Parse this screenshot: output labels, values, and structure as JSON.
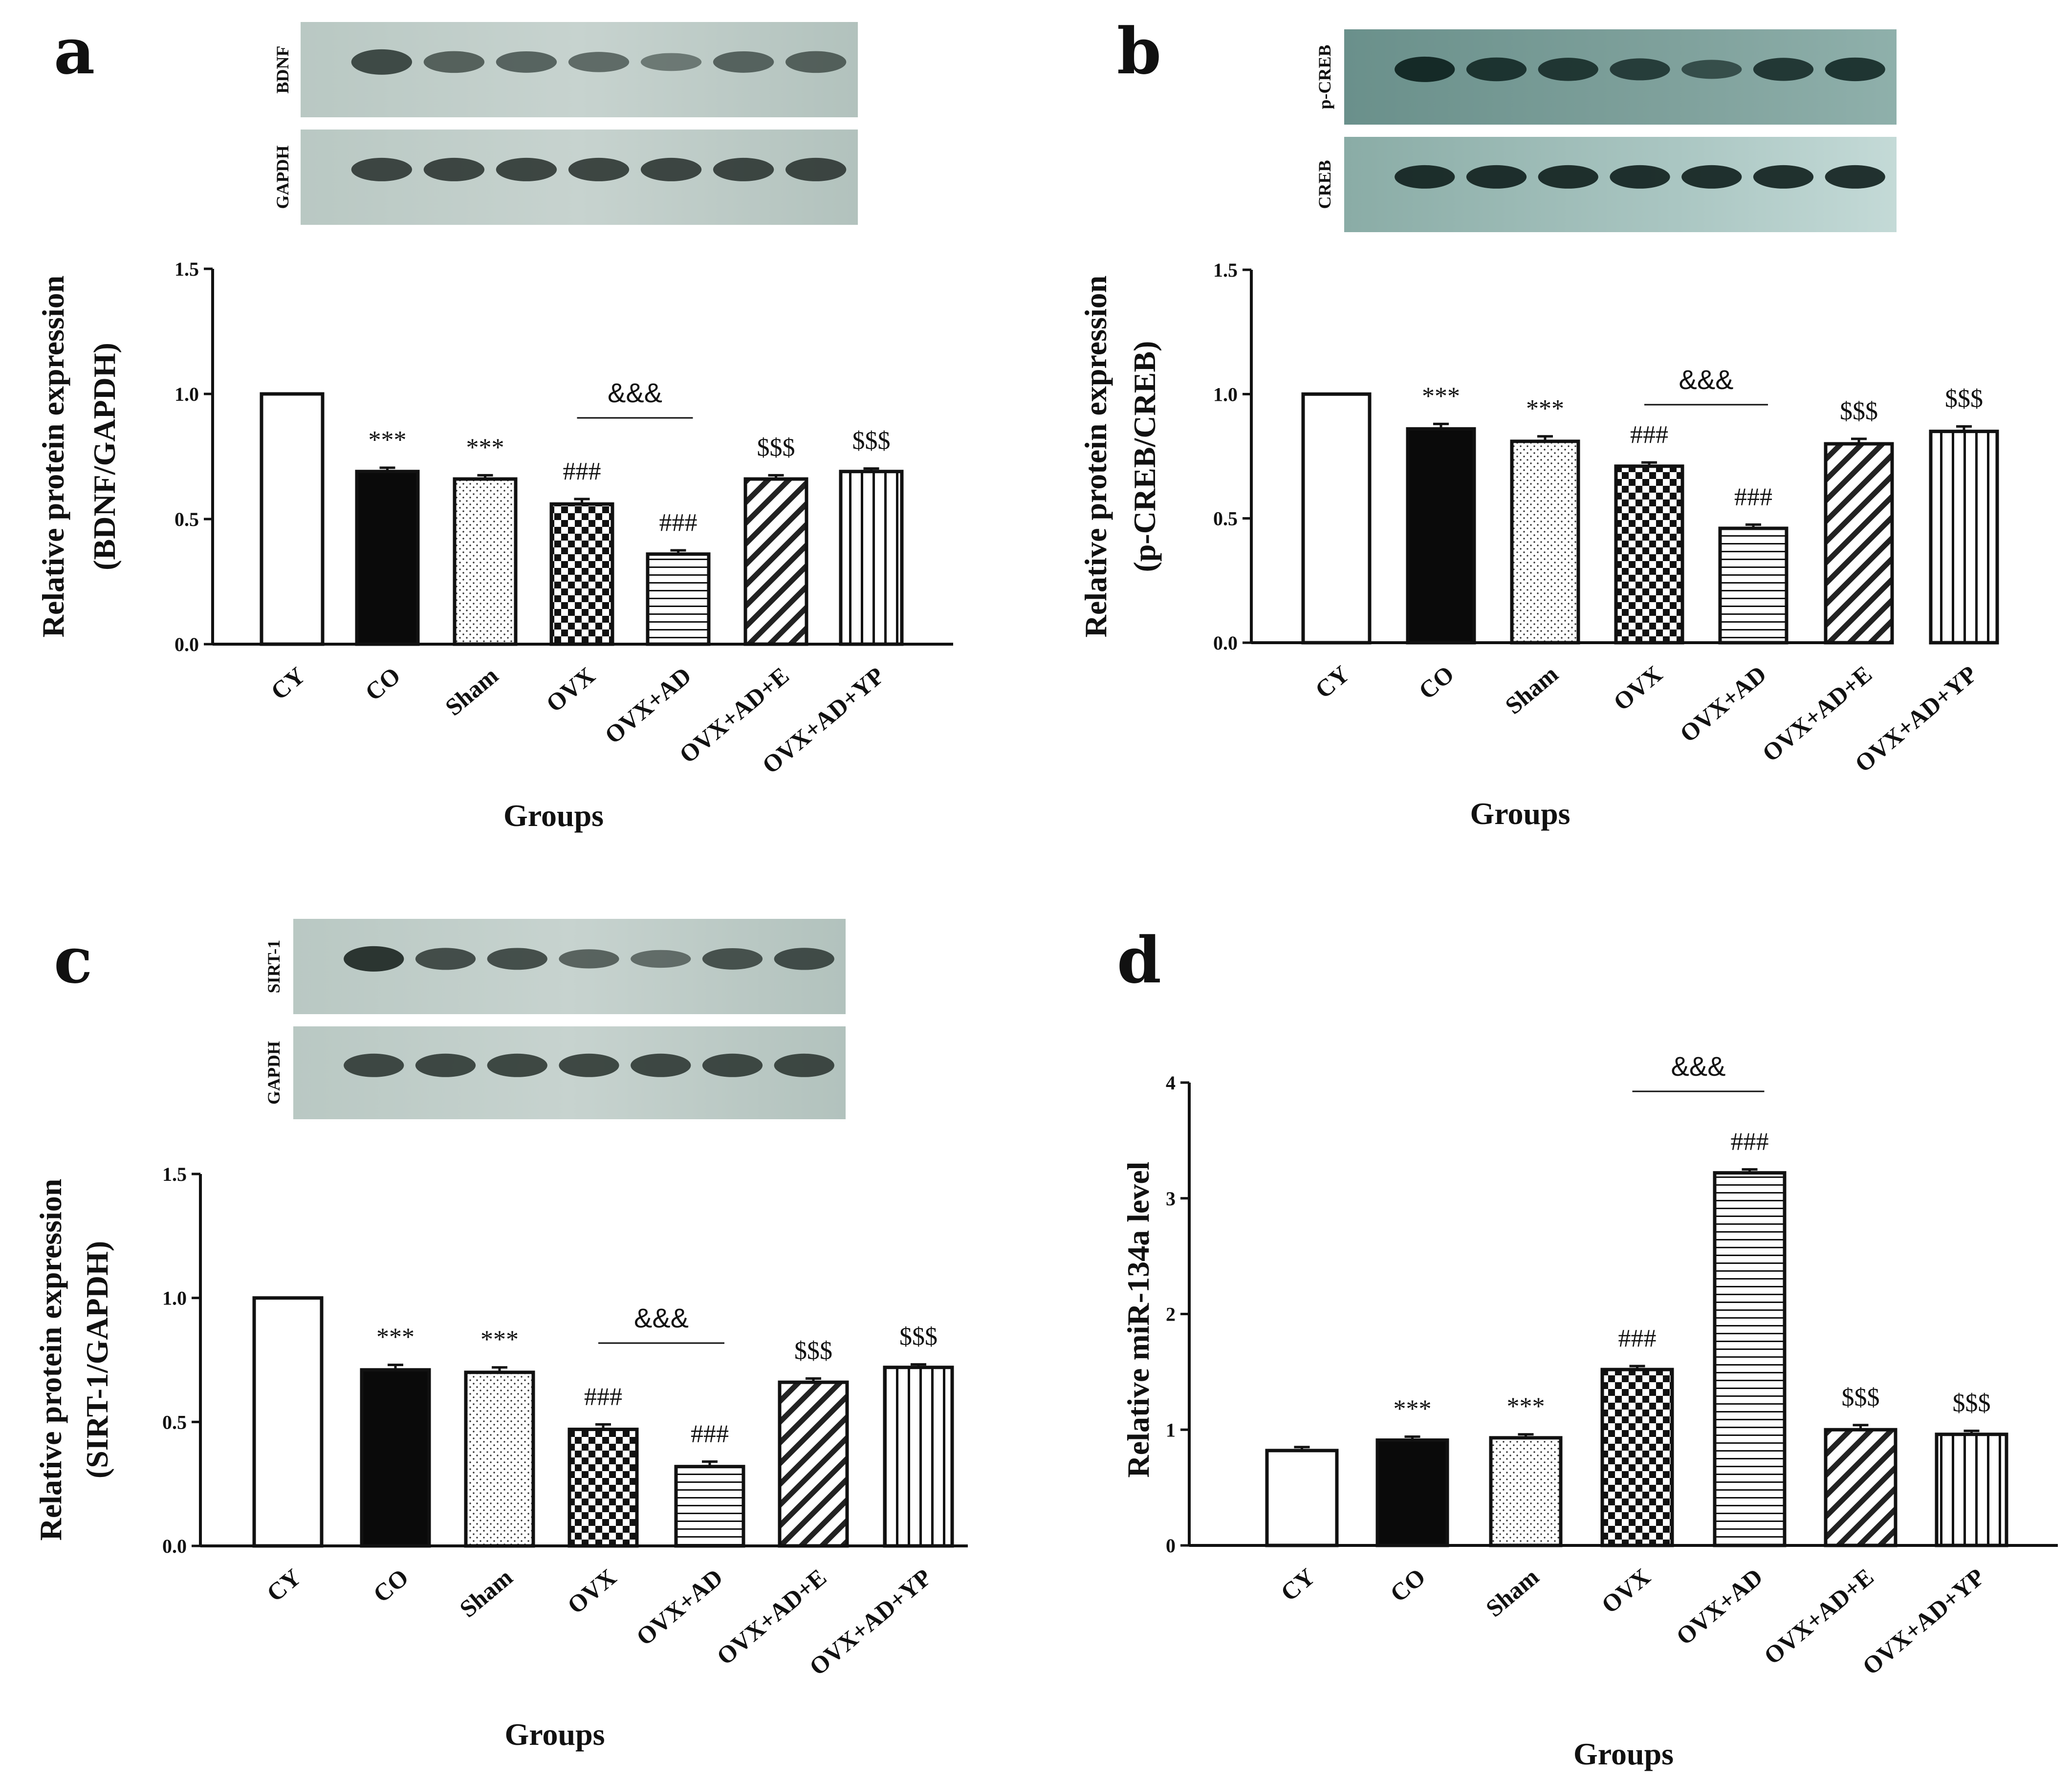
{
  "chart_data": [
    {
      "type": "bar",
      "panel": "a",
      "blot_labels": [
        "BDNF",
        "GAPDH"
      ],
      "categories": [
        "CY",
        "CO",
        "Sham",
        "OVX",
        "OVX+AD",
        "OVX+AD+E",
        "OVX+AD+YP"
      ],
      "values": [
        1.0,
        0.69,
        0.66,
        0.56,
        0.36,
        0.66,
        0.69
      ],
      "errors": [
        0,
        0.015,
        0.015,
        0.02,
        0.015,
        0.015,
        0.012
      ],
      "annotations": [
        "",
        "***",
        "***",
        "###",
        "###",
        "$$$",
        "$$$"
      ],
      "bracket": {
        "text": "&&&",
        "from": "OVX",
        "to": "OVX+AD"
      },
      "ylabel": "Relative protein expression",
      "ylabel2": "(BDNF/GAPDH)",
      "xlabel": "Groups",
      "ylim": [
        0,
        1.5
      ],
      "yticks": [
        "0.0",
        "0.5",
        "1.0",
        "1.5"
      ]
    },
    {
      "type": "bar",
      "panel": "b",
      "blot_labels": [
        "p-CREB",
        "CREB"
      ],
      "categories": [
        "CY",
        "CO",
        "Sham",
        "OVX",
        "OVX+AD",
        "OVX+AD+E",
        "OVX+AD+YP"
      ],
      "values": [
        1.0,
        0.86,
        0.81,
        0.71,
        0.46,
        0.8,
        0.85
      ],
      "errors": [
        0,
        0.02,
        0.02,
        0.015,
        0.015,
        0.02,
        0.02
      ],
      "annotations": [
        "",
        "***",
        "***",
        "###",
        "###",
        "$$$",
        "$$$"
      ],
      "bracket": {
        "text": "&&&",
        "from": "OVX",
        "to": "OVX+AD"
      },
      "ylabel": "Relative protein expression",
      "ylabel2": "(p-CREB/CREB)",
      "xlabel": "Groups",
      "ylim": [
        0,
        1.5
      ],
      "yticks": [
        "0.0",
        "0.5",
        "1.0",
        "1.5"
      ]
    },
    {
      "type": "bar",
      "panel": "c",
      "blot_labels": [
        "SIRT-1",
        "GAPDH"
      ],
      "categories": [
        "CY",
        "CO",
        "Sham",
        "OVX",
        "OVX+AD",
        "OVX+AD+E",
        "OVX+AD+YP"
      ],
      "values": [
        1.0,
        0.71,
        0.7,
        0.47,
        0.32,
        0.66,
        0.72
      ],
      "errors": [
        0,
        0.02,
        0.02,
        0.02,
        0.02,
        0.015,
        0.012
      ],
      "annotations": [
        "",
        "***",
        "***",
        "###",
        "###",
        "$$$",
        "$$$"
      ],
      "bracket": {
        "text": "&&&",
        "from": "OVX",
        "to": "OVX+AD"
      },
      "ylabel": "Relative protein expression",
      "ylabel2": "(SIRT-1/GAPDH)",
      "xlabel": "Groups",
      "ylim": [
        0,
        1.5
      ],
      "yticks": [
        "0.0",
        "0.5",
        "1.0",
        "1.5"
      ]
    },
    {
      "type": "bar",
      "panel": "d",
      "blot_labels": [],
      "categories": [
        "CY",
        "CO",
        "Sham",
        "OVX",
        "OVX+AD",
        "OVX+AD+E",
        "OVX+AD+YP"
      ],
      "values": [
        0.82,
        0.91,
        0.93,
        1.52,
        3.22,
        1.0,
        0.96
      ],
      "errors": [
        0.03,
        0.03,
        0.03,
        0.03,
        0.03,
        0.04,
        0.03
      ],
      "annotations": [
        "",
        "***",
        "***",
        "###",
        "###",
        "$$$",
        "$$$"
      ],
      "bracket": {
        "text": "&&&",
        "from": "OVX",
        "to": "OVX+AD"
      },
      "ylabel": "Relative miR-134a level",
      "ylabel2": "",
      "xlabel": "Groups",
      "ylim": [
        0,
        4
      ],
      "yticks": [
        "0",
        "1",
        "2",
        "3",
        "4"
      ]
    }
  ]
}
